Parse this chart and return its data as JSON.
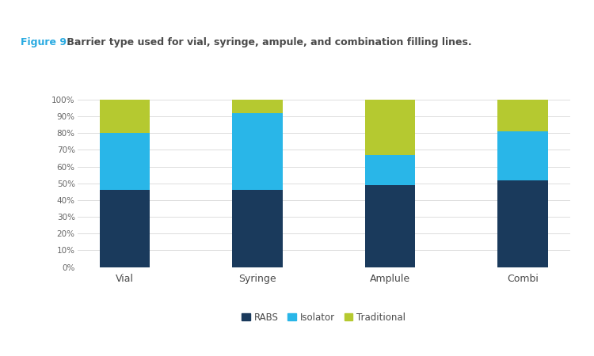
{
  "categories": [
    "Vial",
    "Syringe",
    "Amplule",
    "Combi"
  ],
  "rabs": [
    46,
    46,
    49,
    52
  ],
  "isolator": [
    34,
    46,
    18,
    29
  ],
  "traditional": [
    20,
    8,
    33,
    19
  ],
  "colors": {
    "rabs": "#1a3a5c",
    "isolator": "#29b6e8",
    "traditional": "#b5c930"
  },
  "legend_labels": [
    "RABS",
    "Isolator",
    "Traditional"
  ],
  "title_prefix": "Figure 9:",
  "title_text": " Barrier type used for vial, syringe, ampule, and combination filling lines.",
  "title_color_prefix": "#29aae1",
  "title_color_text": "#4a4a4a",
  "ytick_labels": [
    "0%",
    "10%",
    "20%",
    "30%",
    "40%",
    "50%",
    "60%",
    "70%",
    "80%",
    "90%",
    "100%"
  ],
  "bar_width": 0.38,
  "background_color": "#ffffff"
}
